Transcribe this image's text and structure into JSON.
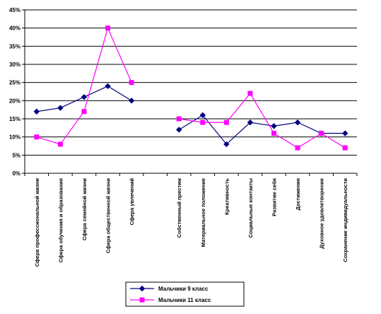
{
  "chart_data": {
    "type": "line",
    "categories": [
      "Сфера профессиональной жизни",
      "Сфера обучения и образования",
      "Сфера семейной жизни",
      "Сфера общественной жизни",
      "Сфера увлечений",
      "",
      "Собственный престиж",
      "Материальное положение",
      "Креативность",
      "Социальные контакты",
      "Развитие себя",
      "Достижения",
      "Духовное удовлетворение",
      "Сохранение индивидуальности"
    ],
    "series": [
      {
        "name": "Мальчики 9 класс",
        "color": "#000080",
        "marker": "diamond",
        "values": [
          17,
          18,
          21,
          24,
          20,
          null,
          12,
          16,
          8,
          14,
          13,
          14,
          11,
          11
        ]
      },
      {
        "name": "Мальчики 11 класс",
        "color": "#FF00FF",
        "marker": "square",
        "values": [
          10,
          8,
          17,
          40,
          25,
          null,
          15,
          14,
          14,
          22,
          11,
          7,
          11,
          7
        ]
      }
    ],
    "yticks": [
      "0%",
      "5%",
      "10%",
      "15%",
      "20%",
      "25%",
      "30%",
      "35%",
      "40%",
      "45%"
    ],
    "ylim": [
      0,
      45
    ],
    "grid": true,
    "legend": "bottom"
  }
}
